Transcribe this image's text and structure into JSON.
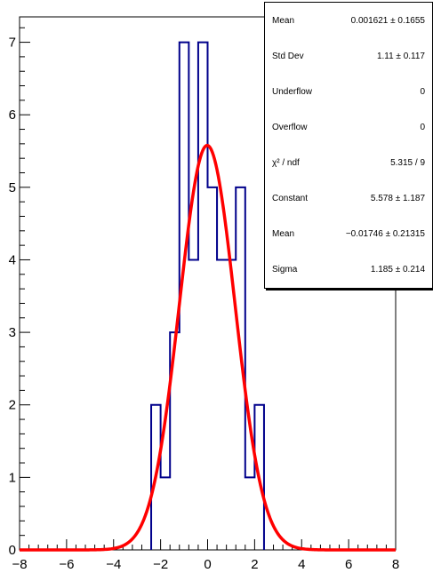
{
  "chart_data": {
    "type": "histogram",
    "title": "",
    "xlabel": "",
    "ylabel": "",
    "xlim": [
      -8,
      8
    ],
    "ylim": [
      0,
      7.35
    ],
    "x_ticks": [
      "−8",
      "−6",
      "−4",
      "−2",
      "0",
      "2",
      "4",
      "6",
      "8"
    ],
    "y_ticks": [
      "0",
      "1",
      "2",
      "3",
      "4",
      "5",
      "6",
      "7"
    ],
    "bin_width": 0.4,
    "bins": [
      {
        "low": -2.4,
        "high": -2.0,
        "count": 2
      },
      {
        "low": -2.0,
        "high": -1.6,
        "count": 1
      },
      {
        "low": -1.6,
        "high": -1.2,
        "count": 3
      },
      {
        "low": -1.2,
        "high": -0.8,
        "count": 7
      },
      {
        "low": -0.8,
        "high": -0.4,
        "count": 4
      },
      {
        "low": -0.4,
        "high": 0.0,
        "count": 7
      },
      {
        "low": 0.0,
        "high": 0.4,
        "count": 5
      },
      {
        "low": 0.4,
        "high": 0.8,
        "count": 4
      },
      {
        "low": 0.8,
        "high": 1.2,
        "count": 4
      },
      {
        "low": 1.2,
        "high": 1.6,
        "count": 5
      },
      {
        "low": 1.6,
        "high": 2.0,
        "count": 1
      },
      {
        "low": 2.0,
        "high": 2.4,
        "count": 2
      }
    ],
    "fit": {
      "type": "gaus",
      "constant": 5.578,
      "mean": -0.01746,
      "sigma": 1.185
    },
    "colors": {
      "histogram": "#00008b",
      "fit": "#ff0000",
      "axis": "#000000"
    }
  },
  "stats": [
    {
      "label": "Mean",
      "value": "0.001621 ± 0.1655"
    },
    {
      "label": "Std Dev",
      "value": "1.11 ±  0.117"
    },
    {
      "label": "Underflow",
      "value": "0"
    },
    {
      "label": "Overflow",
      "value": "0"
    },
    {
      "label": "χ² / ndf",
      "value": "5.315 / 9"
    },
    {
      "label": "Constant",
      "value": "5.578 ± 1.187"
    },
    {
      "label": "Mean",
      "value": "−0.01746 ± 0.21315"
    },
    {
      "label": "Sigma",
      "value": "1.185 ± 0.214"
    }
  ]
}
